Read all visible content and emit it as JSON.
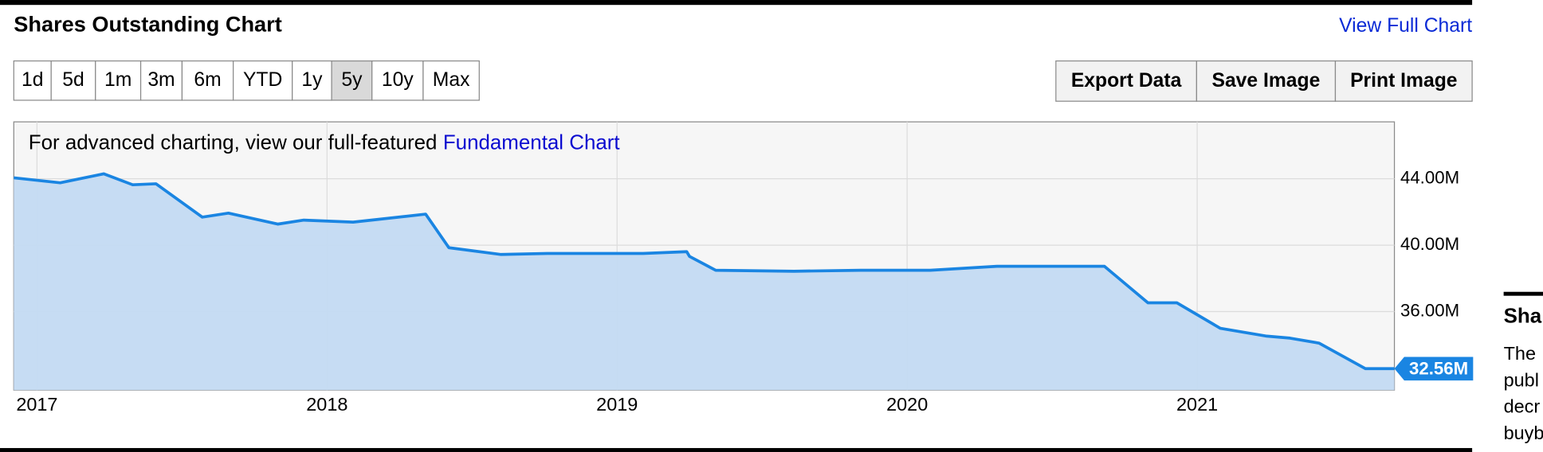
{
  "header": {
    "title": "Shares Outstanding Chart",
    "link": "View Full Chart"
  },
  "range_buttons": [
    "1d",
    "5d",
    "1m",
    "3m",
    "6m",
    "YTD",
    "1y",
    "5y",
    "10y",
    "Max"
  ],
  "actions": [
    "Export Data",
    "Save Image",
    "Print Image"
  ],
  "notice": {
    "text": "For advanced charting, view our full-featured",
    "link": "Fundamental Chart"
  },
  "sidebar": {
    "title": "Sha",
    "lines": [
      "The",
      "publ",
      "decr",
      "buyb"
    ]
  },
  "chart_data": {
    "type": "area",
    "x": [
      2016.92,
      2017.08,
      2017.23,
      2017.33,
      2017.41,
      2017.57,
      2017.66,
      2017.83,
      2017.92,
      2018.09,
      2018.34,
      2018.42,
      2018.6,
      2018.76,
      2019.09,
      2019.24,
      2019.25,
      2019.34,
      2019.61,
      2019.84,
      2020.08,
      2020.31,
      2020.68,
      2020.83,
      2020.93,
      2021.08,
      2021.24,
      2021.32,
      2021.42,
      2021.58,
      2021.68
    ],
    "values": [
      44.06,
      43.76,
      44.3,
      43.64,
      43.7,
      41.69,
      41.93,
      41.27,
      41.51,
      41.39,
      41.87,
      39.85,
      39.44,
      39.5,
      39.5,
      39.61,
      39.32,
      38.49,
      38.43,
      38.49,
      38.49,
      38.73,
      38.73,
      36.53,
      36.53,
      34.99,
      34.52,
      34.4,
      34.1,
      32.56,
      32.56
    ],
    "value_labels": [
      null,
      null,
      null,
      null,
      null,
      null,
      null,
      null,
      null,
      null,
      null,
      null,
      null,
      null,
      null,
      null,
      null,
      null,
      null,
      null,
      null,
      null,
      null,
      null,
      null,
      null,
      null,
      null,
      null,
      null,
      "32.56M"
    ],
    "color": "#1a85e2",
    "fill": "#c3daf2",
    "xlim": [
      2016.92,
      2021.68
    ],
    "ylim": [
      31.27,
      47.43
    ],
    "xticks": [
      2017,
      2018,
      2019,
      2020,
      2021
    ],
    "yticks": [
      {
        "value": 36,
        "label": "36.00M"
      },
      {
        "value": 40,
        "label": "40.00M"
      },
      {
        "value": 44,
        "label": "44.00M"
      }
    ],
    "grid": true
  }
}
